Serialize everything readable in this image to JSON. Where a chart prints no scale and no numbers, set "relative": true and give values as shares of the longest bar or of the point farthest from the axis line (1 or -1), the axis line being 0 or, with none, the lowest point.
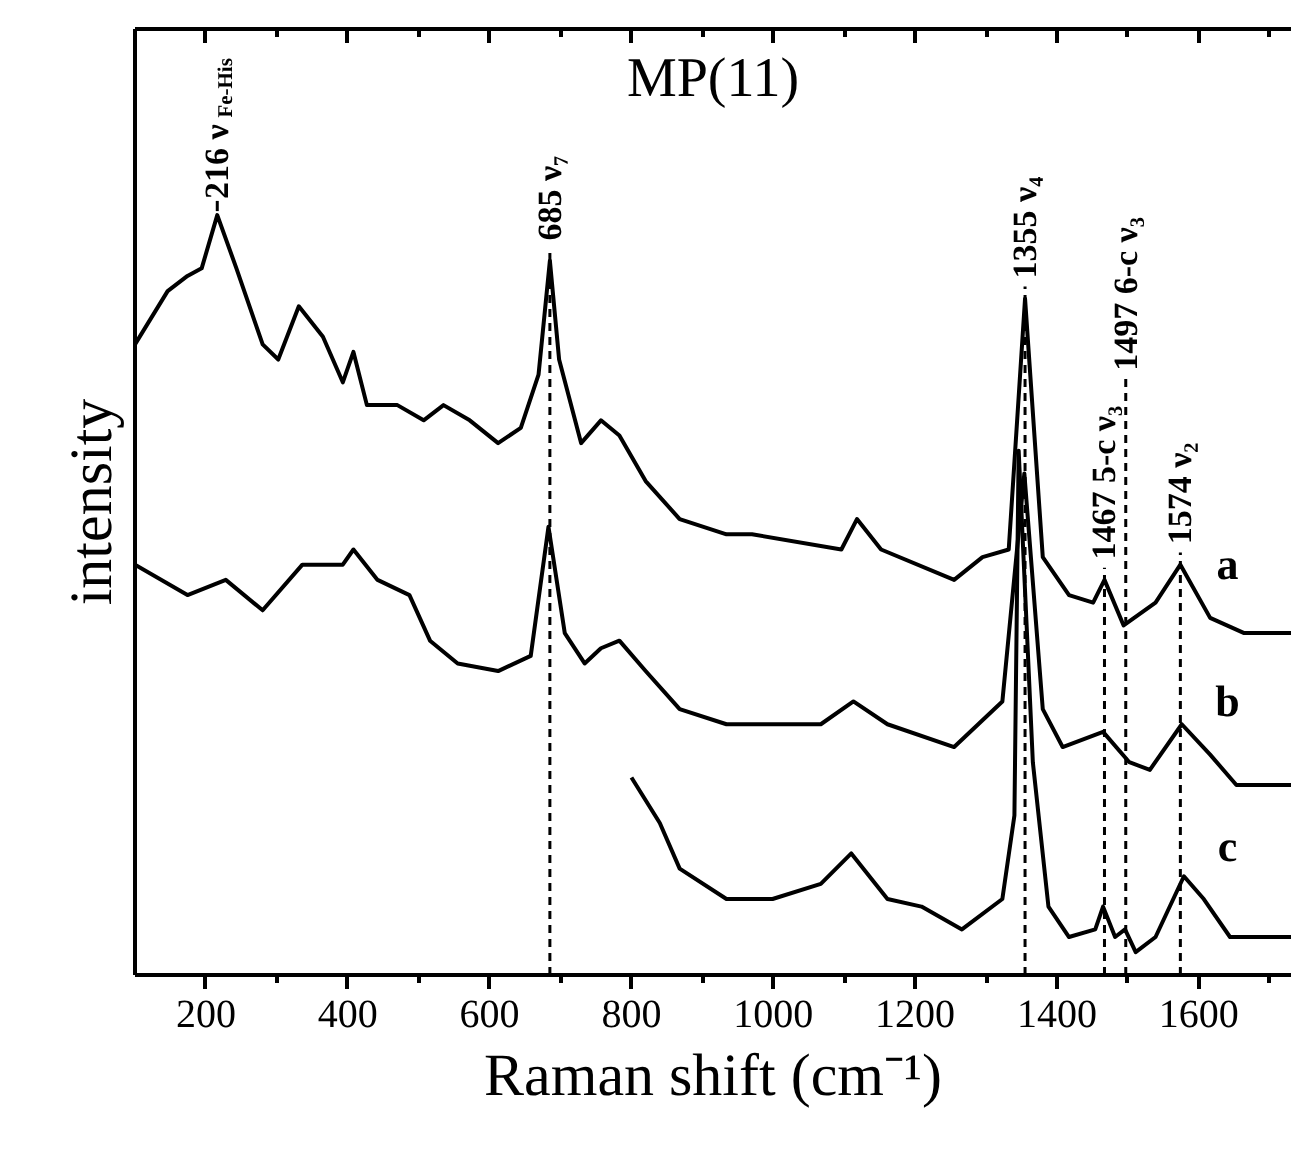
{
  "chart_data": {
    "type": "line",
    "title": "MP(11)",
    "xlabel": "Raman shift (cm⁻¹)",
    "ylabel": "intensity",
    "relative": true,
    "xlim": [
      100,
      1730
    ],
    "xticks": [
      200,
      400,
      600,
      800,
      1000,
      1200,
      1400,
      1600,
      {
        "value": 300,
        "label": null
      },
      {
        "value": 500,
        "label": null
      },
      {
        "value": 700,
        "label": null
      },
      {
        "value": 900,
        "label": null
      },
      {
        "value": 1100,
        "label": null
      },
      {
        "value": 1300,
        "label": null
      },
      {
        "value": 1500,
        "label": null
      },
      {
        "value": 1700,
        "label": null
      }
    ],
    "line_style": "solid",
    "series": [
      {
        "name": "a",
        "color": "#000000",
        "x": [
          100,
          146,
          174,
          194,
          216,
          243,
          280,
          302,
          331,
          365,
          393,
          408,
          427,
          470,
          507,
          535,
          572,
          612,
          644,
          669,
          685,
          698,
          729,
          757,
          783,
          820,
          868,
          934,
          970,
          1096,
          1118,
          1152,
          1255,
          1295,
          1332,
          1355,
          1380,
          1417,
          1451,
          1467,
          1494,
          1539,
          1574,
          1616,
          1664,
          1730
        ],
        "values": [
          0.83,
          0.9,
          0.92,
          0.93,
          1.0,
          0.93,
          0.83,
          0.81,
          0.88,
          0.84,
          0.78,
          0.82,
          0.75,
          0.75,
          0.73,
          0.75,
          0.73,
          0.7,
          0.72,
          0.79,
          0.94,
          0.81,
          0.7,
          0.73,
          0.71,
          0.65,
          0.6,
          0.58,
          0.58,
          0.56,
          0.6,
          0.56,
          0.52,
          0.55,
          0.56,
          0.89,
          0.55,
          0.5,
          0.49,
          0.52,
          0.46,
          0.49,
          0.54,
          0.47,
          0.45,
          0.45
        ]
      },
      {
        "name": "b",
        "color": "#000000",
        "x": [
          100,
          174,
          228,
          280,
          336,
          393,
          408,
          442,
          487,
          516,
          555,
          612,
          658,
          683,
          706,
          734,
          757,
          783,
          820,
          868,
          934,
          970,
          1067,
          1113,
          1161,
          1255,
          1323,
          1354,
          1380,
          1408,
          1465,
          1502,
          1531,
          1576,
          1616,
          1653,
          1730
        ],
        "values": [
          0.54,
          0.5,
          0.52,
          0.48,
          0.54,
          0.54,
          0.56,
          0.52,
          0.5,
          0.44,
          0.41,
          0.4,
          0.42,
          0.59,
          0.45,
          0.41,
          0.43,
          0.44,
          0.4,
          0.35,
          0.33,
          0.33,
          0.33,
          0.36,
          0.33,
          0.3,
          0.36,
          0.66,
          0.35,
          0.3,
          0.32,
          0.28,
          0.27,
          0.33,
          0.29,
          0.25,
          0.25
        ]
      },
      {
        "name": "c",
        "color": "#000000",
        "x": [
          800,
          840,
          868,
          934,
          970,
          999,
          1067,
          1110,
          1161,
          1209,
          1266,
          1323,
          1340,
          1346,
          1366,
          1388,
          1417,
          1454,
          1465,
          1482,
          1496,
          1511,
          1539,
          1579,
          1607,
          1644,
          1730
        ],
        "values": [
          0.26,
          0.2,
          0.14,
          0.1,
          0.1,
          0.1,
          0.12,
          0.16,
          0.1,
          0.09,
          0.06,
          0.1,
          0.21,
          0.69,
          0.28,
          0.09,
          0.05,
          0.06,
          0.09,
          0.05,
          0.06,
          0.03,
          0.05,
          0.13,
          0.1,
          0.05,
          0.05
        ]
      }
    ],
    "annotations": [
      {
        "text": "216 ν$_{Fe-His}$",
        "x": 216,
        "y": 1.0
      }
    ],
    "ref_lines": [
      {
        "axis": "x",
        "value": 685,
        "label": "685 ν₇",
        "color": "#000000",
        "line_style": "dashed"
      },
      {
        "axis": "x",
        "value": 1355,
        "label": "1355 ν₄",
        "color": "#000000",
        "line_style": "dashed"
      },
      {
        "axis": "x",
        "value": 1467,
        "label": "1467 5-c ν₃",
        "color": "#000000",
        "line_style": "dashed"
      },
      {
        "axis": "x",
        "value": 1497,
        "label": "1497 6-c ν₃",
        "color": "#000000",
        "line_style": "dashed"
      },
      {
        "axis": "x",
        "value": 1574,
        "label": "1574 ν₂",
        "color": "#000000",
        "line_style": "dashed"
      }
    ]
  }
}
